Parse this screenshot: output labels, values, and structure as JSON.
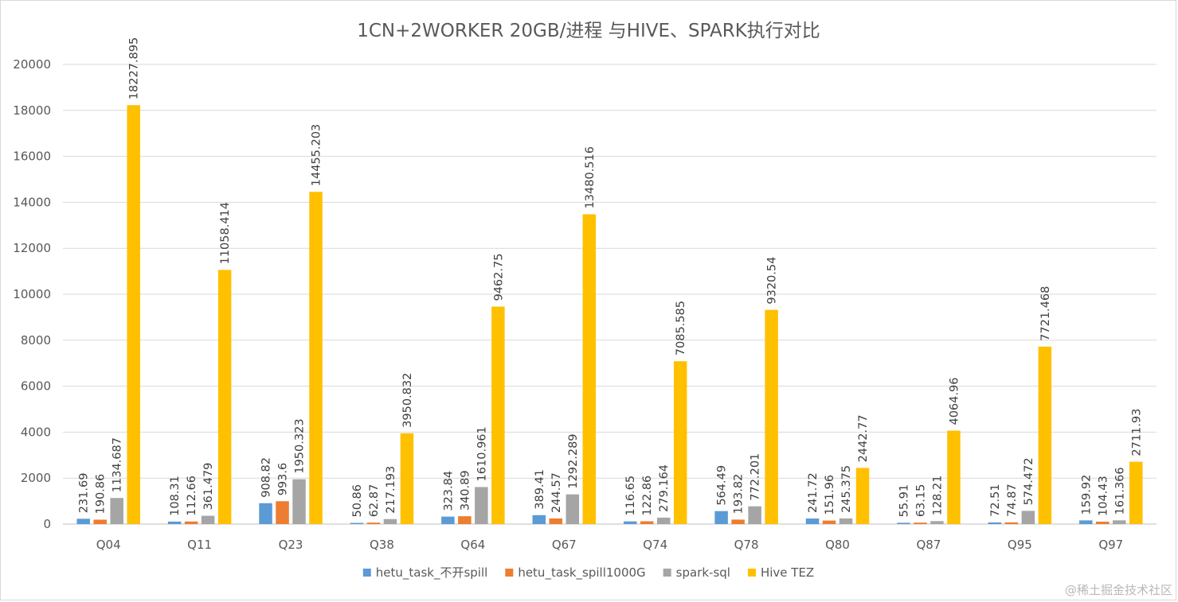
{
  "chart_data": {
    "type": "bar",
    "title": "1CN+2WORKER 20GB/进程 与HIVE、SPARK执行对比",
    "xlabel": "",
    "ylabel": "",
    "ylim": [
      0,
      20000
    ],
    "yticks": [
      "0",
      "2000",
      "4000",
      "6000",
      "8000",
      "10000",
      "12000",
      "14000",
      "16000",
      "18000",
      "20000"
    ],
    "grid": true,
    "legend_position": "bottom",
    "categories": [
      "Q04",
      "Q11",
      "Q23",
      "Q38",
      "Q64",
      "Q67",
      "Q74",
      "Q78",
      "Q80",
      "Q87",
      "Q95",
      "Q97"
    ],
    "series": [
      {
        "name": "hetu_task_不开spill",
        "color": "#5b9bd5",
        "values": [
          231.69,
          108.31,
          908.82,
          50.86,
          323.84,
          389.41,
          116.65,
          564.49,
          241.72,
          55.91,
          72.51,
          159.92
        ],
        "labels": [
          "231.69",
          "108.31",
          "908.82",
          "50.86",
          "323.84",
          "389.41",
          "116.65",
          "564.49",
          "241.72",
          "55.91",
          "72.51",
          "159.92"
        ]
      },
      {
        "name": "hetu_task_spill1000G",
        "color": "#ed7d31",
        "values": [
          190.86,
          112.66,
          993.6,
          62.87,
          340.89,
          244.57,
          122.86,
          193.82,
          151.96,
          63.15,
          74.87,
          104.43
        ],
        "labels": [
          "190.86",
          "112.66",
          "993.6",
          "62.87",
          "340.89",
          "244.57",
          "122.86",
          "193.82",
          "151.96",
          "63.15",
          "74.87",
          "104.43"
        ]
      },
      {
        "name": "spark-sql",
        "color": "#a5a5a5",
        "values": [
          1134.687,
          361.479,
          1950.323,
          217.193,
          1610.961,
          1292.289,
          279.164,
          772.201,
          245.375,
          128.21,
          574.472,
          161.366
        ],
        "labels": [
          "1134.687",
          "361.479",
          "1950.323",
          "217.193",
          "1610.961",
          "1292.289",
          "279.164",
          "772.201",
          "245.375",
          "128.21",
          "574.472",
          "161.366"
        ]
      },
      {
        "name": "Hive TEZ",
        "color": "#ffc000",
        "values": [
          18227.895,
          11058.414,
          14455.203,
          3950.832,
          9462.75,
          13480.516,
          7085.585,
          9320.54,
          2442.77,
          4064.96,
          7721.468,
          2711.93
        ],
        "labels": [
          "18227.895",
          "11058.414",
          "14455.203",
          "3950.832",
          "9462.75",
          "13480.516",
          "7085.585",
          "9320.54",
          "2442.77",
          "4064.96",
          "7721.468",
          "2711.93"
        ]
      }
    ]
  },
  "watermark": "@稀土掘金技术社区"
}
